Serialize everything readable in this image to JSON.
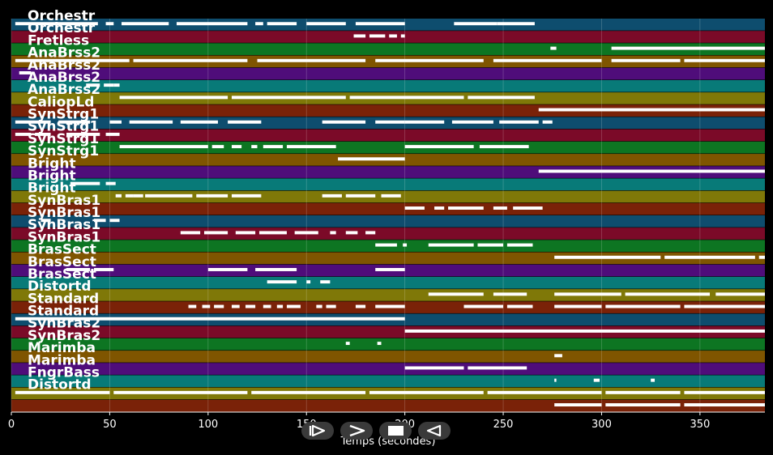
{
  "chart_data": {
    "type": "broken_barh",
    "title": "",
    "xlabel": "Temps (secondes)",
    "ylabel": "",
    "xlim": [
      0,
      383
    ],
    "xticks": [
      0,
      50,
      100,
      150,
      200,
      250,
      300,
      350
    ],
    "grid": true,
    "background": "#000000",
    "text_color": "#ffffff",
    "note_color": "#ffffff",
    "lanes": [
      {
        "label": "Orchestr",
        "color": "#0e4d6e",
        "notes": [
          [
            2,
            44
          ],
          [
            48,
            52
          ],
          [
            56,
            80
          ],
          [
            84,
            120
          ],
          [
            124,
            128
          ],
          [
            130,
            145
          ],
          [
            150,
            170
          ],
          [
            175,
            200
          ],
          [
            225,
            247
          ],
          [
            247,
            266
          ]
        ]
      },
      {
        "label": "Orchestr",
        "color": "#7b0a28",
        "notes": [
          [
            174,
            180
          ],
          [
            182,
            190
          ],
          [
            192,
            196
          ],
          [
            198,
            200
          ]
        ]
      },
      {
        "label": "Fretless",
        "color": "#0d7522",
        "notes": [
          [
            274,
            277
          ],
          [
            305,
            383
          ]
        ]
      },
      {
        "label": "AnaBrss2",
        "color": "#7f5500",
        "notes": [
          [
            2,
            60
          ],
          [
            62,
            120
          ],
          [
            125,
            180
          ],
          [
            185,
            240
          ],
          [
            245,
            300
          ],
          [
            305,
            340
          ],
          [
            342,
            383
          ]
        ]
      },
      {
        "label": "AnaBrss2",
        "color": "#4f0d7a",
        "notes": [
          [
            4,
            10
          ]
        ]
      },
      {
        "label": "AnaBrss2",
        "color": "#087a78",
        "notes": [
          [
            38,
            45
          ],
          [
            47,
            52
          ],
          [
            52,
            55
          ]
        ]
      },
      {
        "label": "AnaBrss2",
        "color": "#7f7808",
        "notes": [
          [
            55,
            110
          ],
          [
            112,
            170
          ],
          [
            172,
            230
          ],
          [
            232,
            266
          ]
        ]
      },
      {
        "label": "CaliopLd",
        "color": "#7a2208",
        "notes": [
          [
            268,
            383
          ]
        ]
      },
      {
        "label": "SynStrg1",
        "color": "#0e4d6e",
        "notes": [
          [
            2,
            20
          ],
          [
            24,
            40
          ],
          [
            50,
            56
          ],
          [
            60,
            82
          ],
          [
            86,
            105
          ],
          [
            110,
            127
          ],
          [
            158,
            180
          ],
          [
            185,
            200
          ],
          [
            200,
            220
          ],
          [
            224,
            245
          ],
          [
            248,
            268
          ],
          [
            270,
            275
          ]
        ]
      },
      {
        "label": "SynStrg1",
        "color": "#7b0a28",
        "notes": [
          [
            2,
            10
          ],
          [
            12,
            20
          ],
          [
            28,
            45
          ],
          [
            48,
            55
          ]
        ]
      },
      {
        "label": "SynStrg1",
        "color": "#0d7522",
        "notes": [
          [
            55,
            100
          ],
          [
            102,
            108
          ],
          [
            112,
            117
          ],
          [
            122,
            125
          ],
          [
            128,
            138
          ],
          [
            140,
            165
          ],
          [
            200,
            235
          ],
          [
            238,
            263
          ]
        ]
      },
      {
        "label": "SynStrg1",
        "color": "#7f5500",
        "notes": [
          [
            166,
            200
          ]
        ]
      },
      {
        "label": "Bright",
        "color": "#4f0d7a",
        "notes": [
          [
            268,
            383
          ]
        ]
      },
      {
        "label": "Bright",
        "color": "#087a78",
        "notes": [
          [
            30,
            45
          ],
          [
            48,
            53
          ]
        ]
      },
      {
        "label": "Bright",
        "color": "#7f7808",
        "notes": [
          [
            53,
            56
          ],
          [
            58,
            62
          ],
          [
            62,
            67
          ],
          [
            68,
            92
          ],
          [
            94,
            110
          ],
          [
            112,
            127
          ],
          [
            158,
            168
          ],
          [
            170,
            185
          ],
          [
            188,
            198
          ]
        ]
      },
      {
        "label": "SynBras1",
        "color": "#7a2208",
        "notes": [
          [
            200,
            210
          ],
          [
            215,
            220
          ],
          [
            222,
            240
          ],
          [
            245,
            252
          ],
          [
            255,
            270
          ]
        ]
      },
      {
        "label": "SynBras1",
        "color": "#0e4d6e",
        "notes": [
          [
            15,
            20
          ],
          [
            42,
            48
          ],
          [
            50,
            55
          ]
        ]
      },
      {
        "label": "SynBras1",
        "color": "#7b0a28",
        "notes": [
          [
            86,
            96
          ],
          [
            98,
            110
          ],
          [
            114,
            124
          ],
          [
            126,
            140
          ],
          [
            144,
            156
          ],
          [
            162,
            165
          ],
          [
            170,
            176
          ],
          [
            180,
            185
          ]
        ]
      },
      {
        "label": "SynBras1",
        "color": "#0d7522",
        "notes": [
          [
            185,
            196
          ],
          [
            199,
            201
          ],
          [
            212,
            235
          ],
          [
            237,
            250
          ],
          [
            252,
            265
          ]
        ]
      },
      {
        "label": "BrasSect",
        "color": "#7f5500",
        "notes": [
          [
            276,
            330
          ],
          [
            332,
            378
          ],
          [
            380,
            383
          ]
        ]
      },
      {
        "label": "BrasSect",
        "color": "#4f0d7a",
        "notes": [
          [
            28,
            40
          ],
          [
            42,
            52
          ],
          [
            100,
            120
          ],
          [
            124,
            145
          ],
          [
            185,
            200
          ]
        ]
      },
      {
        "label": "BrasSect",
        "color": "#087a78",
        "notes": [
          [
            130,
            145
          ],
          [
            150,
            152
          ],
          [
            157,
            162
          ]
        ]
      },
      {
        "label": "Distortd",
        "color": "#7f7808",
        "notes": [
          [
            212,
            240
          ],
          [
            245,
            262
          ],
          [
            276,
            310
          ],
          [
            312,
            355
          ],
          [
            358,
            383
          ]
        ]
      },
      {
        "label": "Standard",
        "color": "#7a2208",
        "notes": [
          [
            90,
            94
          ],
          [
            97,
            101
          ],
          [
            103,
            108
          ],
          [
            112,
            116
          ],
          [
            119,
            124
          ],
          [
            128,
            132
          ],
          [
            135,
            138
          ],
          [
            140,
            147
          ],
          [
            155,
            158
          ],
          [
            160,
            165
          ],
          [
            175,
            180
          ],
          [
            185,
            200
          ],
          [
            230,
            250
          ],
          [
            252,
            265
          ],
          [
            276,
            300
          ],
          [
            302,
            340
          ],
          [
            342,
            383
          ]
        ]
      },
      {
        "label": "Standard",
        "color": "#0e4d6e",
        "notes": [
          [
            2,
            200
          ]
        ]
      },
      {
        "label": "SynBras2",
        "color": "#7b0a28",
        "notes": [
          [
            200,
            383
          ]
        ]
      },
      {
        "label": "SynBras2",
        "color": "#0d7522",
        "notes": [
          [
            170,
            172
          ],
          [
            186,
            188
          ]
        ]
      },
      {
        "label": "Marimba",
        "color": "#7f5500",
        "notes": [
          [
            276,
            280
          ]
        ]
      },
      {
        "label": "Marimba",
        "color": "#4f0d7a",
        "notes": [
          [
            200,
            230
          ],
          [
            232,
            262
          ]
        ]
      },
      {
        "label": "FngrBass",
        "color": "#087a78",
        "notes": [
          [
            276,
            277
          ],
          [
            296,
            299
          ],
          [
            325,
            327
          ]
        ]
      },
      {
        "label": "Distortd",
        "color": "#7f7808",
        "notes": [
          [
            2,
            50
          ],
          [
            52,
            120
          ],
          [
            122,
            180
          ],
          [
            182,
            240
          ],
          [
            242,
            300
          ],
          [
            302,
            340
          ],
          [
            342,
            383
          ]
        ]
      },
      {
        "label": "",
        "color": "#7a2208",
        "notes": [
          [
            276,
            300
          ],
          [
            302,
            340
          ],
          [
            342,
            383
          ]
        ]
      }
    ]
  },
  "controls": [
    {
      "name": "rewind",
      "icon": "rewind-icon"
    },
    {
      "name": "play",
      "icon": "play-icon"
    },
    {
      "name": "stop",
      "icon": "stop-icon"
    },
    {
      "name": "back",
      "icon": "back-icon"
    }
  ]
}
